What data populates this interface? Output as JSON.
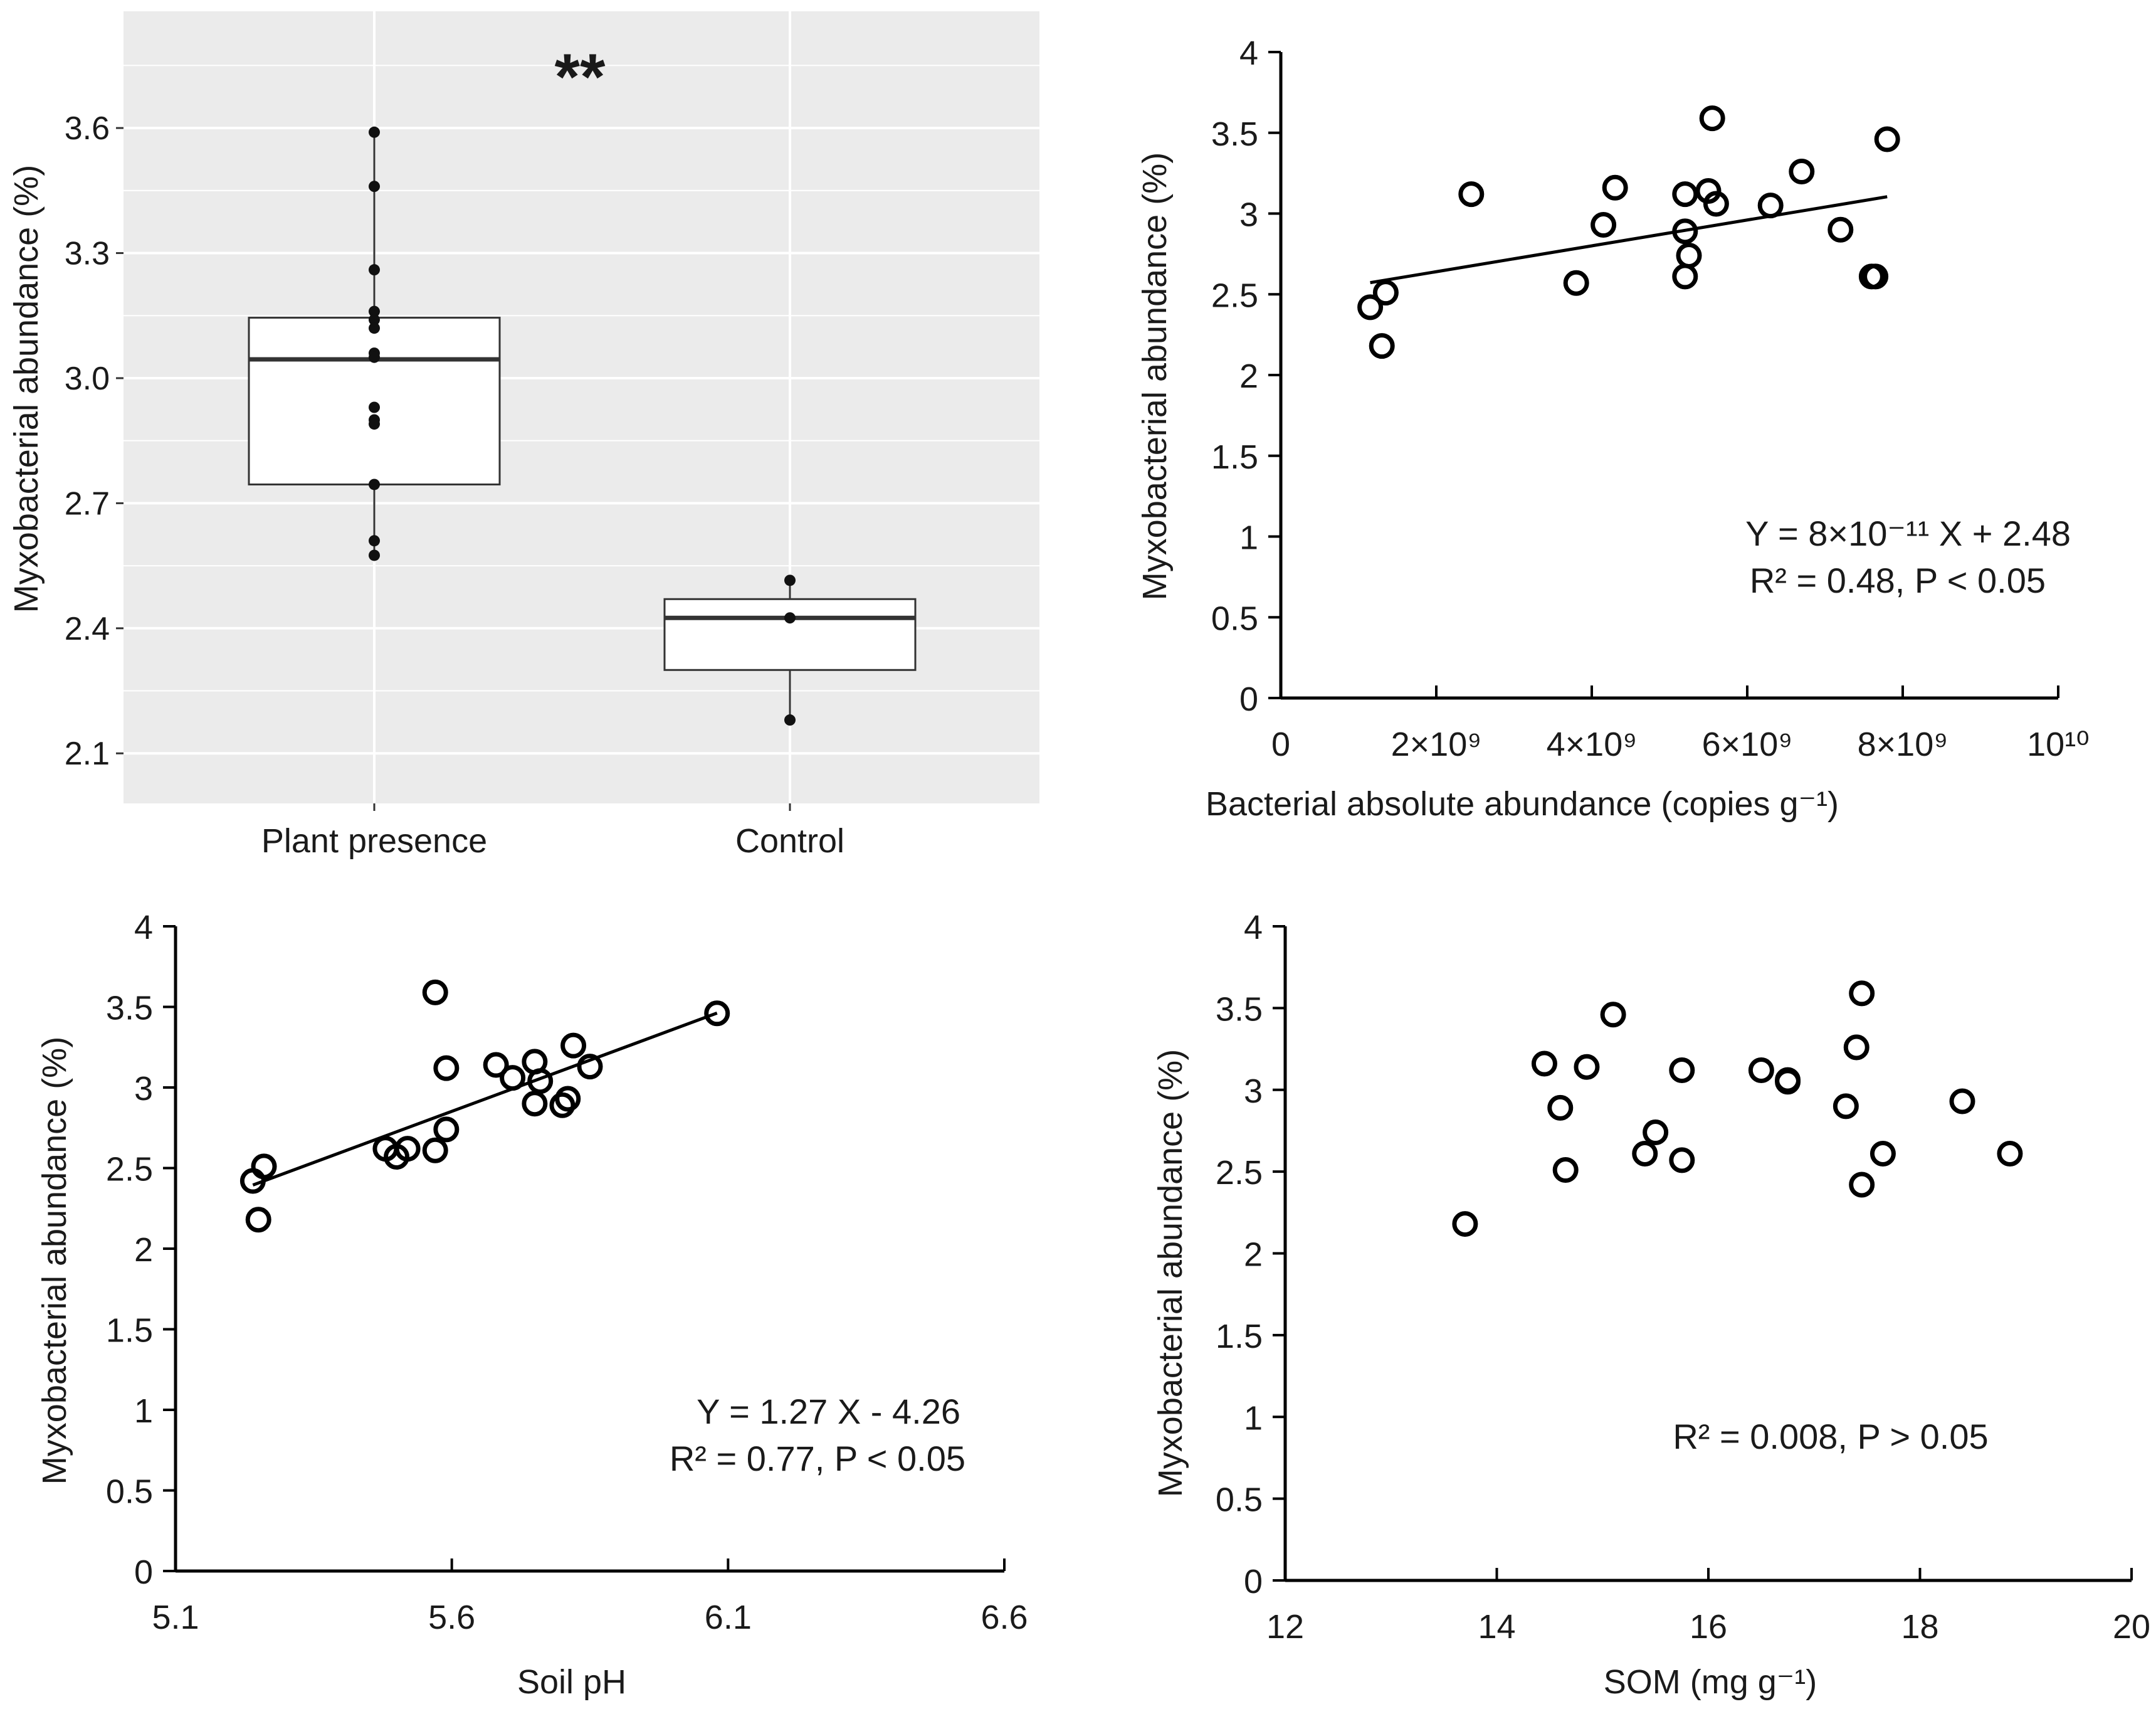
{
  "chart_data": [
    {
      "type": "box",
      "title": "",
      "xlabel": "",
      "ylabel": "Myxobacterial abundance (%)",
      "ylim": [
        1.98,
        3.88
      ],
      "yticks": [
        "2.1",
        "2.4",
        "2.7",
        "3.0",
        "3.3",
        "3.6"
      ],
      "significance": "**",
      "categories": [
        "Plant presence",
        "Control"
      ],
      "boxes": [
        {
          "name": "Plant presence",
          "q1": 2.745,
          "median": 3.045,
          "q3": 3.145,
          "whisker_low": 2.575,
          "whisker_high": 3.59,
          "points": [
            3.59,
            3.46,
            3.26,
            3.16,
            3.14,
            3.12,
            3.06,
            3.05,
            2.93,
            2.9,
            2.89,
            2.745,
            2.61,
            2.575
          ]
        },
        {
          "name": "Control",
          "q1": 2.3,
          "median": 2.425,
          "q3": 2.47,
          "whisker_low": 2.18,
          "whisker_high": 2.515,
          "points": [
            2.515,
            2.425,
            2.18
          ]
        }
      ]
    },
    {
      "type": "scatter",
      "xlabel": "Bacterial absolute abundance (copies g⁻¹)",
      "ylabel": "Myxobacterial abundance (%)",
      "xlim": [
        0,
        10000000000
      ],
      "ylim": [
        0,
        4
      ],
      "xticks": [
        {
          "value": 0,
          "label": "0"
        },
        {
          "value": 2000000000,
          "label": "2×10⁹"
        },
        {
          "value": 4000000000,
          "label": "4×10⁹"
        },
        {
          "value": 6000000000,
          "label": "6×10⁹"
        },
        {
          "value": 8000000000,
          "label": "8×10⁹"
        },
        {
          "value": 10000000000,
          "label": "10¹⁰"
        }
      ],
      "yticks": [
        "0",
        "0.5",
        "1",
        "1.5",
        "2",
        "2.5",
        "3",
        "3.5",
        "4"
      ],
      "x": [
        1150000000,
        1350000000,
        1300000000,
        2450000000,
        3800000000,
        4150000000,
        4300000000,
        5200000000,
        5200000000,
        5200000000,
        5250000000,
        5500000000,
        5550000000,
        5600000000,
        6300000000,
        6700000000,
        7200000000,
        7600000000,
        7650000000,
        7800000000
      ],
      "y": [
        2.42,
        2.51,
        2.18,
        3.12,
        2.57,
        2.93,
        3.16,
        3.12,
        2.89,
        2.61,
        2.74,
        3.14,
        3.59,
        3.06,
        3.05,
        3.26,
        2.9,
        2.61,
        2.61,
        3.46
      ],
      "fit": {
        "slope": 8e-11,
        "intercept": 2.48,
        "x_range": [
          1150000000,
          7800000000
        ]
      },
      "equation": "Y = 8×10⁻¹¹ X + 2.48",
      "stats": "R² = 0.48, P < 0.05"
    },
    {
      "type": "scatter",
      "xlabel": "Soil pH",
      "ylabel": "Myxobacterial abundance (%)",
      "xlim": [
        5.1,
        6.6
      ],
      "ylim": [
        0,
        4
      ],
      "xticks": [
        {
          "value": 5.1,
          "label": "5.1"
        },
        {
          "value": 5.6,
          "label": "5.6"
        },
        {
          "value": 6.1,
          "label": "6.1"
        },
        {
          "value": 6.6,
          "label": "6.6"
        }
      ],
      "yticks": [
        "0",
        "0.5",
        "1",
        "1.5",
        "2",
        "2.5",
        "3",
        "3.5",
        "4"
      ],
      "x": [
        5.24,
        5.26,
        5.25,
        5.48,
        5.5,
        5.52,
        5.57,
        5.57,
        5.59,
        5.59,
        5.68,
        5.71,
        5.75,
        5.75,
        5.76,
        5.8,
        5.81,
        5.82,
        5.85,
        6.08
      ],
      "y": [
        2.42,
        2.51,
        2.18,
        2.62,
        2.57,
        2.62,
        3.59,
        2.61,
        2.74,
        3.12,
        3.14,
        3.06,
        3.16,
        2.9,
        3.04,
        2.89,
        2.93,
        3.26,
        3.13,
        3.46
      ],
      "fit": {
        "slope": 1.27,
        "intercept": -4.26,
        "x_range": [
          5.24,
          6.08
        ]
      },
      "equation": "Y = 1.27 X - 4.26",
      "stats": "R² = 0.77, P < 0.05"
    },
    {
      "type": "scatter",
      "xlabel": "SOM (mg g⁻¹)",
      "ylabel": "Myxobacterial abundance (%)",
      "xlim": [
        12,
        20
      ],
      "ylim": [
        0,
        4
      ],
      "xticks": [
        {
          "value": 12,
          "label": "12"
        },
        {
          "value": 14,
          "label": "14"
        },
        {
          "value": 16,
          "label": "16"
        },
        {
          "value": 18,
          "label": "18"
        },
        {
          "value": 20,
          "label": "20"
        }
      ],
      "yticks": [
        "0",
        "0.5",
        "1",
        "1.5",
        "2",
        "2.5",
        "3",
        "3.5",
        "4"
      ],
      "x": [
        13.7,
        14.45,
        14.6,
        14.65,
        14.85,
        15.1,
        15.4,
        15.5,
        15.75,
        15.75,
        16.5,
        16.75,
        16.75,
        17.3,
        17.4,
        17.45,
        17.45,
        17.65,
        18.4,
        18.85
      ],
      "y": [
        2.18,
        3.16,
        2.89,
        2.51,
        3.14,
        3.46,
        2.61,
        2.74,
        3.12,
        2.57,
        3.12,
        3.06,
        3.05,
        2.9,
        3.26,
        3.59,
        2.42,
        2.61,
        2.93,
        2.61
      ],
      "fit": null,
      "equation": "",
      "stats": "R² = 0.008, P > 0.05"
    }
  ]
}
